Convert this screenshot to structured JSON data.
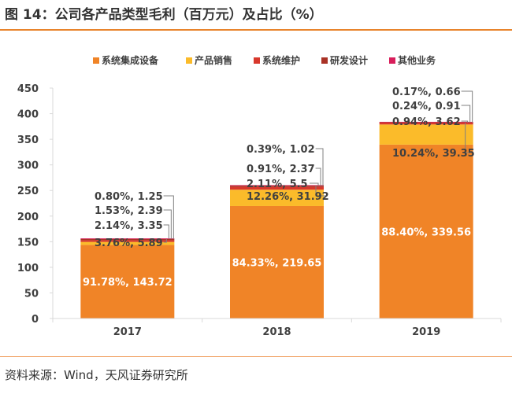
{
  "title": "图 14：公司各产品类型毛利（百万元）及占比（%）",
  "source": "资料来源：Wind，天风证券研究所",
  "colors": {
    "accent": "#e8842c",
    "axis": "#d9d9d9"
  },
  "chart_data": {
    "type": "bar",
    "stacked": true,
    "categories": [
      "2017",
      "2018",
      "2019"
    ],
    "ylim": [
      0,
      450
    ],
    "yticks": [
      0,
      50,
      100,
      150,
      200,
      250,
      300,
      350,
      400,
      450
    ],
    "grid": false,
    "legend_position": "top",
    "series": [
      {
        "name": "系统集成设备",
        "color": "#f08427",
        "values": [
          143.72,
          219.65,
          339.56
        ],
        "labels": [
          "91.78%, 143.72",
          "84.33%, 219.65",
          "88.40%, 339.56"
        ]
      },
      {
        "name": "产品销售",
        "color": "#fbbb2a",
        "values": [
          5.89,
          31.92,
          39.35
        ],
        "labels": [
          "3.76%, 5.89",
          "12.26%, 31.92",
          "10.24%, 39.35"
        ]
      },
      {
        "name": "系统维护",
        "color": "#d8382c",
        "values": [
          3.35,
          5.5,
          3.62
        ],
        "labels": [
          "2.14%, 3.35",
          "2.11%, 5.5",
          "0.94%, 3.62"
        ]
      },
      {
        "name": "研发设计",
        "color": "#a93226",
        "values": [
          2.39,
          2.37,
          0.91
        ],
        "labels": [
          "1.53%, 2.39",
          "0.91%, 2.37",
          "0.24%, 0.91"
        ]
      },
      {
        "name": "其他业务",
        "color": "#d81e5b",
        "values": [
          1.25,
          1.02,
          0.66
        ],
        "labels": [
          "0.80%, 1.25",
          "0.39%, 1.02",
          "0.17%, 0.66"
        ]
      }
    ]
  }
}
